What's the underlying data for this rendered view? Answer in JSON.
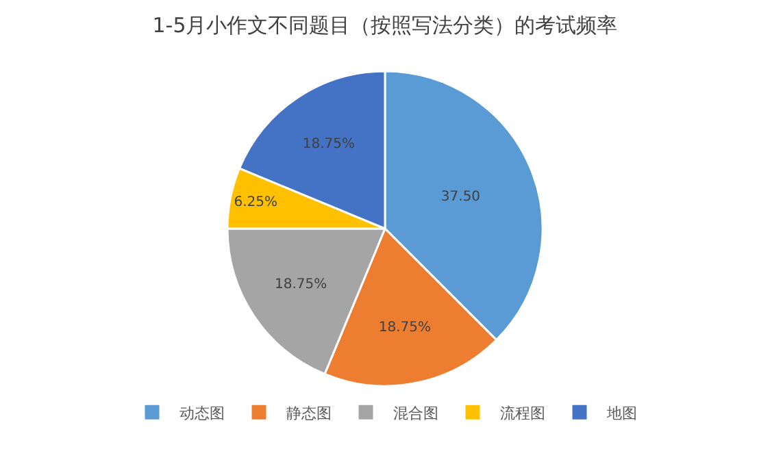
{
  "chart_data": {
    "type": "pie",
    "title": "1-5月小作文不同题目（按照写法分类）的考试频率",
    "categories": [
      "动态图",
      "静态图",
      "混合图",
      "流程图",
      "地图"
    ],
    "values": [
      37.5,
      18.75,
      18.75,
      6.25,
      18.75
    ],
    "colors": [
      "#5b9bd5",
      "#ed7d31",
      "#a5a5a5",
      "#ffc000",
      "#4472c4"
    ],
    "value_labels": [
      "37.50",
      "18.75%",
      "18.75%",
      "6.25%",
      "18.75%"
    ],
    "legend": "bottom"
  }
}
